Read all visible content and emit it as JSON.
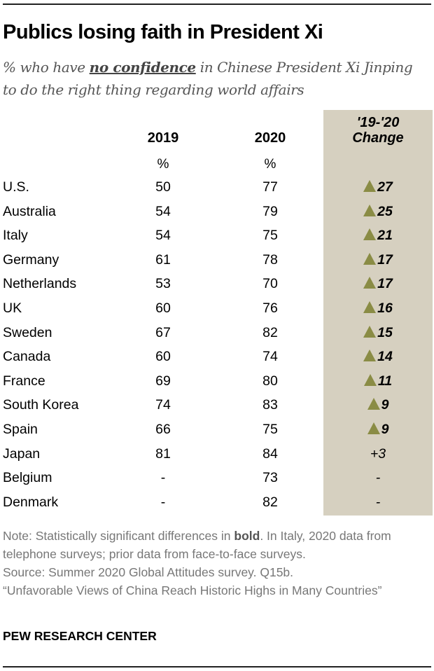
{
  "title": "Publics losing faith in President Xi",
  "subtitle": {
    "pre": "% who have ",
    "emph": "no confidence",
    "post": " in Chinese President Xi Jinping to do the right thing regarding world affairs"
  },
  "chart_data": {
    "type": "table",
    "columns": [
      "2019",
      "2020",
      "'19-'20 Change"
    ],
    "units": [
      "%",
      "%"
    ],
    "rows": [
      {
        "country": "U.S.",
        "y2019": "50",
        "y2020": "77",
        "change": "27",
        "significant": true
      },
      {
        "country": "Australia",
        "y2019": "54",
        "y2020": "79",
        "change": "25",
        "significant": true
      },
      {
        "country": "Italy",
        "y2019": "54",
        "y2020": "75",
        "change": "21",
        "significant": true
      },
      {
        "country": "Germany",
        "y2019": "61",
        "y2020": "78",
        "change": "17",
        "significant": true
      },
      {
        "country": "Netherlands",
        "y2019": "53",
        "y2020": "70",
        "change": "17",
        "significant": true
      },
      {
        "country": "UK",
        "y2019": "60",
        "y2020": "76",
        "change": "16",
        "significant": true
      },
      {
        "country": "Sweden",
        "y2019": "67",
        "y2020": "82",
        "change": "15",
        "significant": true
      },
      {
        "country": "Canada",
        "y2019": "60",
        "y2020": "74",
        "change": "14",
        "significant": true
      },
      {
        "country": "France",
        "y2019": "69",
        "y2020": "80",
        "change": "11",
        "significant": true
      },
      {
        "country": "South Korea",
        "y2019": "74",
        "y2020": "83",
        "change": "9",
        "significant": true
      },
      {
        "country": "Spain",
        "y2019": "66",
        "y2020": "75",
        "change": "9",
        "significant": true
      },
      {
        "country": "Japan",
        "y2019": "81",
        "y2020": "84",
        "change": "+3",
        "significant": false
      },
      {
        "country": "Belgium",
        "y2019": "-",
        "y2020": "73",
        "change": "-",
        "significant": false
      },
      {
        "country": "Denmark",
        "y2019": "-",
        "y2020": "82",
        "change": "-",
        "significant": false
      }
    ]
  },
  "header": {
    "c2019": "2019",
    "c2020": "2020",
    "change_l1": "'19-'20",
    "change_l2": "Change",
    "pct": "%"
  },
  "note": {
    "pre": "Note: Statistically significant differences in ",
    "bold": "bold",
    "post": ". In Italy, 2020 data from telephone surveys; prior data from face-to-face surveys.",
    "source": "Source: Summer 2020 Global Attitudes survey. Q15b.",
    "report": "“Unfavorable Views of China Reach Historic Highs in Many Countries”"
  },
  "brand": "PEW RESEARCH CENTER",
  "colors": {
    "change_bg": "#d6d0c0",
    "triangle": "#8a8c45"
  }
}
